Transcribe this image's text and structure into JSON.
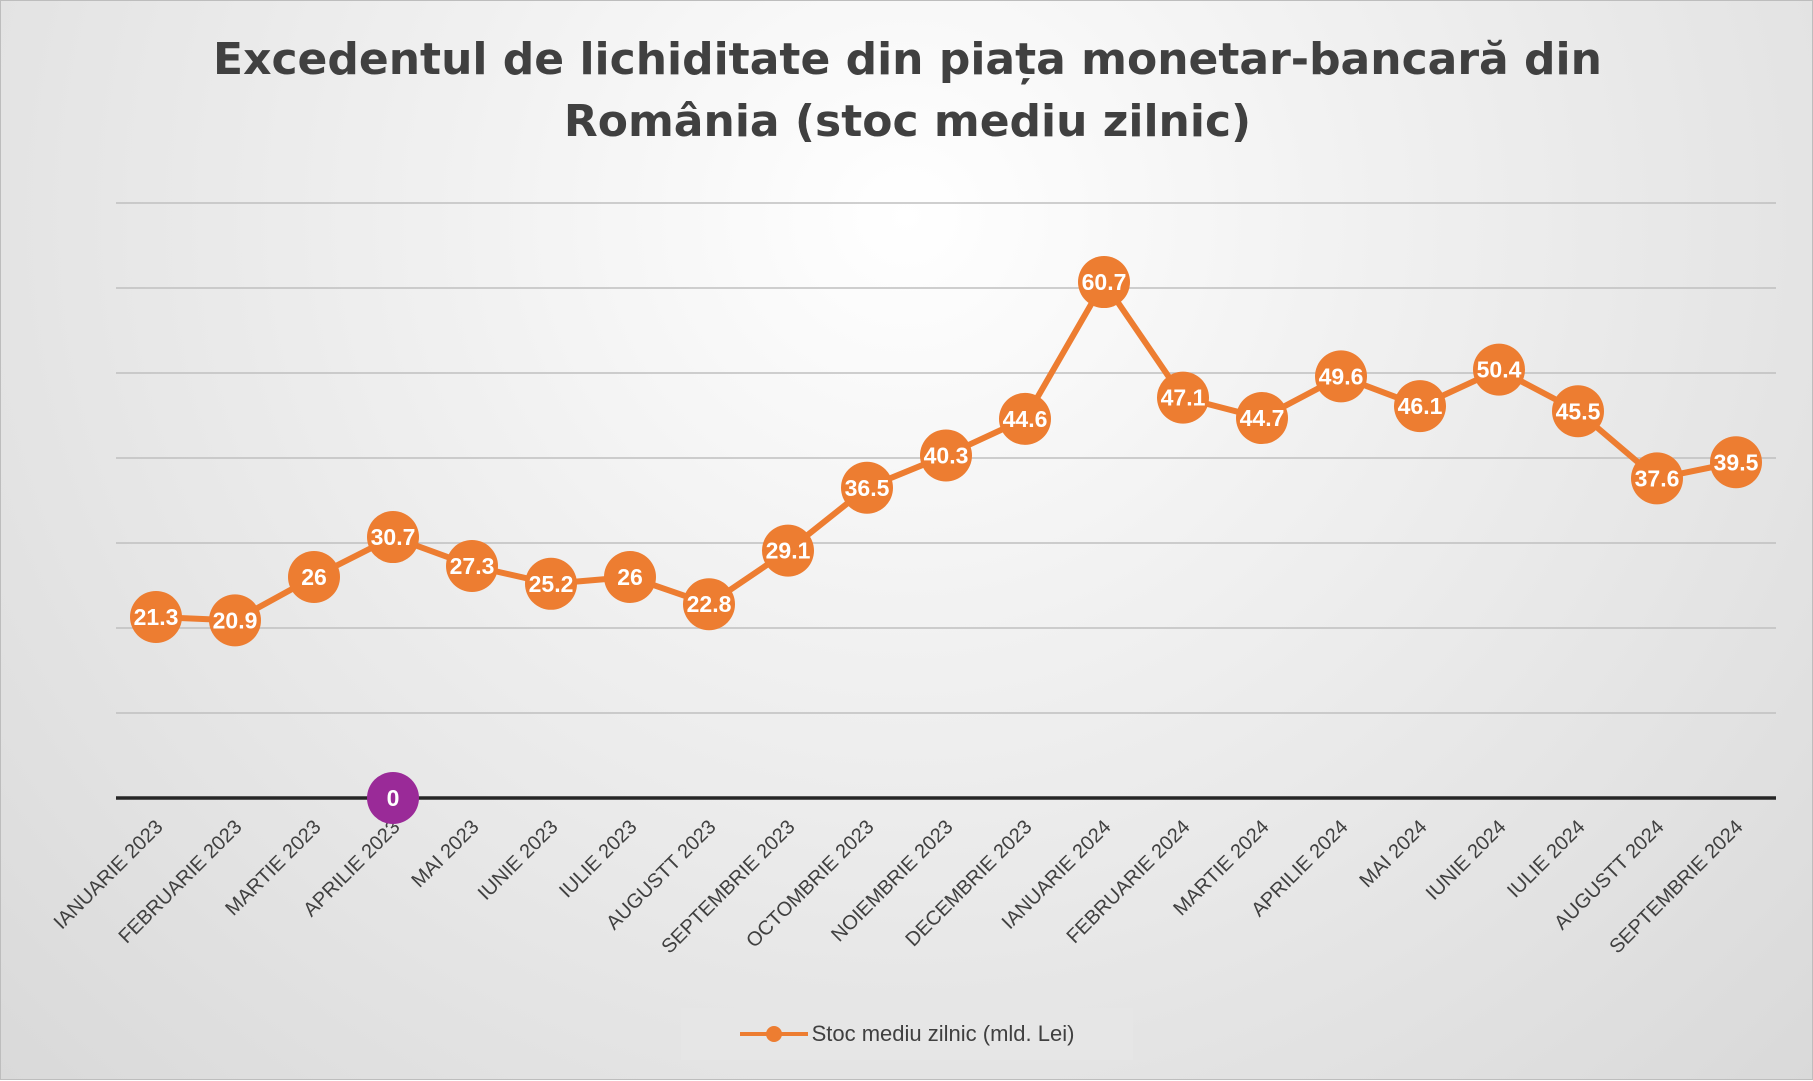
{
  "chart_data": {
    "type": "line",
    "title": [
      "Excedentul de lichiditate din piața monetar-bancară din",
      "România (stoc mediu zilnic)"
    ],
    "categories": [
      "IANUARIE 2023",
      "FEBRUARIE 2023",
      "MARTIE 2023",
      "APRILIE 2023",
      "MAI 2023",
      "IUNIE 2023",
      "IULIE 2023",
      "AUGUSTT 2023",
      "SEPTEMBRIE 2023",
      "OCTOMBRIE 2023",
      "NOIEMBRIE 2023",
      "DECEMBRIE 2023",
      "IANUARIE 2024",
      "FEBRUARIE 2024",
      "MARTIE 2024",
      "APRILIE 2024",
      "MAI 2024",
      "IUNIE 2024",
      "IULIE 2024",
      "AUGUSTT 2024",
      "SEPTEMBRIE 2024"
    ],
    "series": [
      {
        "name": "Stoc mediu zilnic (mld. Lei)",
        "color": "#ed7d31",
        "values": [
          21.3,
          20.9,
          26,
          30.7,
          27.3,
          25.2,
          26,
          22.8,
          29.1,
          36.5,
          40.3,
          44.6,
          60.7,
          47.1,
          44.7,
          49.6,
          46.1,
          50.4,
          45.5,
          37.6,
          39.5
        ]
      }
    ],
    "extra_point": {
      "category": "APRILIE 2023",
      "value": 0,
      "label": "0",
      "color": "#9a2a98"
    },
    "ylim": [
      0,
      70
    ],
    "y_gridlines": [
      10,
      20,
      30,
      40,
      50,
      60,
      70
    ],
    "y_tick_labels_shown": false,
    "legend_position": "bottom"
  }
}
